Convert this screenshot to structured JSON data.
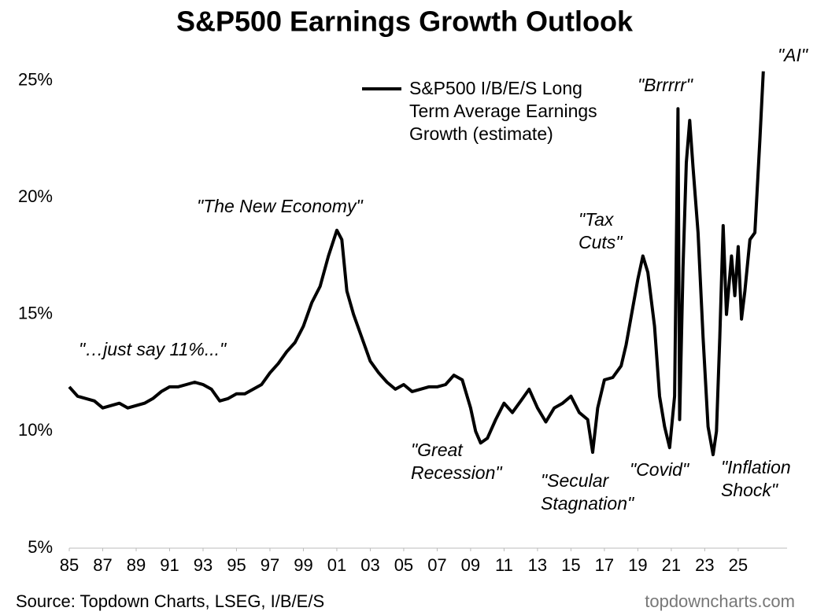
{
  "chart_data": {
    "type": "line",
    "title": "S&P500 Earnings Growth Outlook",
    "source": "Source: Topdown Charts, LSEG, I/B/E/S",
    "watermark": "topdowncharts.com",
    "x": [
      1985.0,
      1985.5,
      1986.0,
      1986.5,
      1987.0,
      1987.5,
      1988.0,
      1988.5,
      1989.0,
      1989.5,
      1990.0,
      1990.5,
      1991.0,
      1991.5,
      1992.0,
      1992.5,
      1993.0,
      1993.5,
      1994.0,
      1994.5,
      1995.0,
      1995.5,
      1996.0,
      1996.5,
      1997.0,
      1997.5,
      1998.0,
      1998.5,
      1999.0,
      1999.5,
      2000.0,
      2000.5,
      2001.0,
      2001.3,
      2001.6,
      2002.0,
      2002.5,
      2003.0,
      2003.5,
      2004.0,
      2004.5,
      2005.0,
      2005.5,
      2006.0,
      2006.5,
      2007.0,
      2007.5,
      2008.0,
      2008.5,
      2009.0,
      2009.3,
      2009.6,
      2010.0,
      2010.5,
      2011.0,
      2011.5,
      2012.0,
      2012.5,
      2013.0,
      2013.5,
      2014.0,
      2014.5,
      2015.0,
      2015.5,
      2016.0,
      2016.3,
      2016.6,
      2017.0,
      2017.5,
      2018.0,
      2018.3,
      2018.7,
      2019.0,
      2019.3,
      2019.6,
      2020.0,
      2020.3,
      2020.6,
      2020.9,
      2021.2,
      2021.4,
      2021.5,
      2021.7,
      2021.9,
      2022.1,
      2022.3,
      2022.6,
      2022.9,
      2023.2,
      2023.5,
      2023.7,
      2023.9,
      2024.1,
      2024.3,
      2024.6,
      2024.8,
      2025.0,
      2025.2,
      2025.4,
      2025.7,
      2026.0,
      2026.3,
      2026.5
    ],
    "series": [
      {
        "name": "S&P500 I/B/E/S Long Term Average Earnings Growth (estimate)",
        "color": "#000000",
        "values": [
          11.9,
          11.5,
          11.4,
          11.3,
          11.0,
          11.1,
          11.2,
          11.0,
          11.1,
          11.2,
          11.4,
          11.7,
          11.9,
          11.9,
          12.0,
          12.1,
          12.0,
          11.8,
          11.3,
          11.4,
          11.6,
          11.6,
          11.8,
          12.0,
          12.5,
          12.9,
          13.4,
          13.8,
          14.5,
          15.5,
          16.2,
          17.5,
          18.6,
          18.2,
          16.0,
          15.0,
          14.0,
          13.0,
          12.5,
          12.1,
          11.8,
          12.0,
          11.7,
          11.8,
          11.9,
          11.9,
          12.0,
          12.4,
          12.2,
          11.0,
          10.0,
          9.5,
          9.7,
          10.5,
          11.2,
          10.8,
          11.3,
          11.8,
          11.0,
          10.4,
          11.0,
          11.2,
          11.5,
          10.8,
          10.5,
          9.1,
          11.0,
          12.2,
          12.3,
          12.8,
          13.7,
          15.3,
          16.5,
          17.5,
          16.8,
          14.5,
          11.5,
          10.2,
          9.3,
          11.5,
          23.8,
          10.5,
          17.0,
          21.5,
          23.3,
          21.3,
          18.5,
          14.0,
          10.2,
          9.0,
          10.0,
          14.0,
          18.8,
          15.0,
          17.5,
          15.8,
          17.9,
          14.8,
          16.0,
          18.2,
          18.5,
          22.5,
          25.4
        ]
      }
    ],
    "xlim": [
      1985,
      2027.5
    ],
    "xticks": [
      {
        "value": 1985,
        "label": "85"
      },
      {
        "value": 1987,
        "label": "87"
      },
      {
        "value": 1989,
        "label": "89"
      },
      {
        "value": 1991,
        "label": "91"
      },
      {
        "value": 1993,
        "label": "93"
      },
      {
        "value": 1995,
        "label": "95"
      },
      {
        "value": 1997,
        "label": "97"
      },
      {
        "value": 1999,
        "label": "99"
      },
      {
        "value": 2001,
        "label": "01"
      },
      {
        "value": 2003,
        "label": "03"
      },
      {
        "value": 2005,
        "label": "05"
      },
      {
        "value": 2007,
        "label": "07"
      },
      {
        "value": 2009,
        "label": "09"
      },
      {
        "value": 2011,
        "label": "11"
      },
      {
        "value": 2013,
        "label": "13"
      },
      {
        "value": 2015,
        "label": "15"
      },
      {
        "value": 2017,
        "label": "17"
      },
      {
        "value": 2019,
        "label": "19"
      },
      {
        "value": 2021,
        "label": "21"
      },
      {
        "value": 2023,
        "label": "23"
      },
      {
        "value": 2025,
        "label": "25"
      }
    ],
    "ylim": [
      5,
      26.5
    ],
    "yticks": [
      {
        "value": 5,
        "label": "5%"
      },
      {
        "value": 10,
        "label": "10%"
      },
      {
        "value": 15,
        "label": "15%"
      },
      {
        "value": 20,
        "label": "20%"
      },
      {
        "value": 25,
        "label": "25%"
      }
    ],
    "grid": false,
    "annotations": [
      "\"…just say 11%...\"",
      "\"The New Economy\"",
      "\"Tax Cuts\"",
      "\"Brrrrr\"",
      "\"AI\"",
      "\"Great Recession\"",
      "\"Secular Stagnation\"",
      "\"Covid\"",
      "\"Inflation Shock\""
    ]
  }
}
